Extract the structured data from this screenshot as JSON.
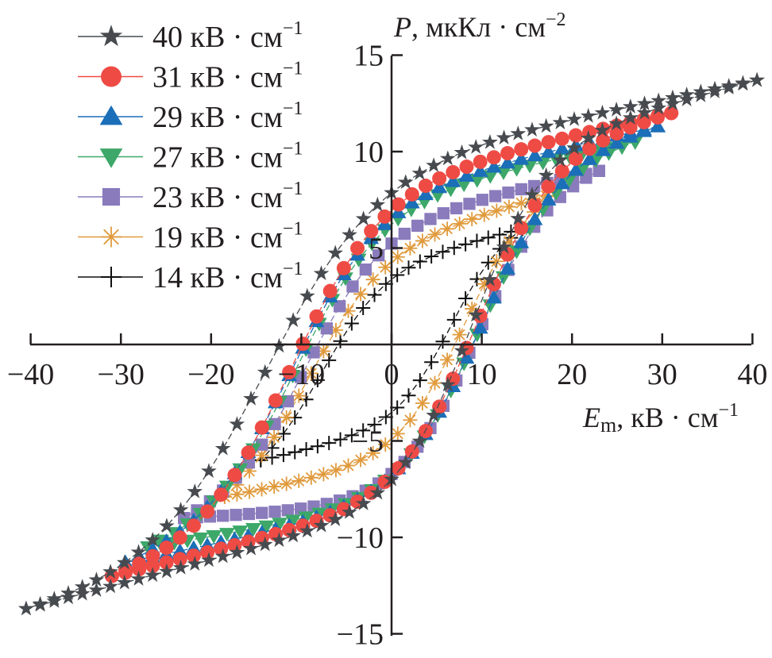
{
  "chart_data": {
    "type": "scatter",
    "title": "",
    "xlabel": "E_m, кВ · см^-1",
    "xlabel_parts": {
      "main": "E",
      "sub": "m",
      "rest": ", кВ · см",
      "sup": "−1"
    },
    "ylabel": "P, мкКл · см^-2",
    "ylabel_parts": {
      "main": "P",
      "rest": ", мкКл · см",
      "sup": "−2"
    },
    "xlim": [
      -40,
      40
    ],
    "ylim": [
      -15,
      15
    ],
    "xticks": [
      -40,
      -30,
      -20,
      -10,
      0,
      10,
      20,
      30,
      40
    ],
    "xtick_labels": [
      "−40",
      "−30",
      "−20",
      "−10",
      "0",
      "10",
      "20",
      "30",
      "40"
    ],
    "yticks": [
      -15,
      -10,
      -5,
      5,
      10,
      15
    ],
    "ytick_labels": [
      "−15",
      "−10",
      "−5",
      "5",
      "10",
      "15"
    ],
    "grid": false,
    "legend_position": "top-left",
    "series": [
      {
        "name": "40 кВ · см−1",
        "label": "40 кВ · см",
        "sup": "−1",
        "marker": "star",
        "color": "#474b4f",
        "Emax": 40.5,
        "Pmax": 13.7,
        "Pr": 7.9,
        "Ec": 14.0,
        "Pr_lower": -7.0,
        "Ec_lower": 9.0
      },
      {
        "name": "31 кВ · см−1",
        "label": "31 кВ · см",
        "sup": "−1",
        "marker": "circle",
        "color": "#ef4b45",
        "Emax": 31.0,
        "Pmax": 12.0,
        "Pr": 7.0,
        "Ec": 11.2,
        "Pr_lower": -6.8,
        "Ec_lower": 9.5
      },
      {
        "name": "29 кВ · см−1",
        "label": "29 кВ · см",
        "sup": "−1",
        "marker": "triangle-up",
        "color": "#1b6eb8",
        "Emax": 29.5,
        "Pmax": 11.3,
        "Pr": 6.6,
        "Ec": 11.0,
        "Pr_lower": -6.8,
        "Ec_lower": 10.0
      },
      {
        "name": "27 кВ · см−1",
        "label": "27 кВ · см",
        "sup": "−1",
        "marker": "triangle-down",
        "color": "#3da869",
        "Emax": 27.0,
        "Pmax": 10.5,
        "Pr": 6.3,
        "Ec": 10.5,
        "Pr_lower": -6.8,
        "Ec_lower": 9.8
      },
      {
        "name": "23 кВ · см−1",
        "label": "23 кВ · см",
        "sup": "−1",
        "marker": "square",
        "color": "#8a7bbc",
        "Emax": 23.0,
        "Pmax": 9.0,
        "Pr": 5.3,
        "Ec": 9.5,
        "Pr_lower": -6.8,
        "Ec_lower": 9.5
      },
      {
        "name": "19 кВ · см−1",
        "label": "19 кВ · см",
        "sup": "−1",
        "marker": "asterisk",
        "color": "#e09a3c",
        "Emax": 18.5,
        "Pmax": 7.9,
        "Pr": 4.4,
        "Ec": 9.0,
        "Pr_lower": -5.0,
        "Ec_lower": 8.0
      },
      {
        "name": "14 кВ · см−1",
        "label": "14 кВ · см",
        "sup": "−1",
        "marker": "plus",
        "color": "#111111",
        "Emax": 14.5,
        "Pmax": 6.0,
        "Pr": 3.5,
        "Ec": 7.5,
        "Pr_lower": -3.6,
        "Ec_lower": 6.5
      }
    ]
  }
}
